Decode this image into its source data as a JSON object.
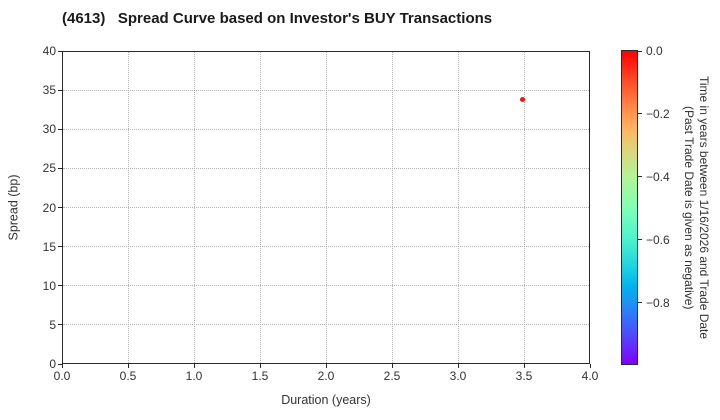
{
  "colors": {
    "background": "#ffffff",
    "frame": "#2a2a2a",
    "grid": "#b3b3b3",
    "text": "#333333",
    "title": "#1a1a1a",
    "point": "#f3170c"
  },
  "chart_data": {
    "type": "scatter",
    "title": "(4613)   Spread Curve based on Investor's BUY Transactions",
    "xlabel": "Duration (years)",
    "ylabel": "Spread (bp)",
    "xlim": [
      0.0,
      4.0
    ],
    "ylim": [
      0,
      40
    ],
    "xtick_values": [
      0,
      0.5,
      1,
      1.5,
      2,
      2.5,
      3,
      3.5,
      4
    ],
    "xtick_labels": [
      "0.0",
      "0.5",
      "1.0",
      "1.5",
      "2.0",
      "2.5",
      "3.0",
      "3.5",
      "4.0"
    ],
    "ytick_values": [
      0,
      5,
      10,
      15,
      20,
      25,
      30,
      35,
      40
    ],
    "ytick_labels": [
      "0",
      "5",
      "10",
      "15",
      "20",
      "25",
      "30",
      "35",
      "40"
    ],
    "grid": true,
    "legend": "none",
    "points": [
      {
        "x": 3.49,
        "y": 33.8,
        "time_value": 0.0,
        "color": "#f3170c"
      }
    ],
    "colorbar": {
      "label_line1": "Time in years between 1/16/2026 and Trade Date",
      "label_line2": "(Past Trade Date is given as negative)",
      "tick_values": [
        0.0,
        -0.2,
        -0.4,
        -0.6,
        -0.8
      ],
      "tick_labels": [
        "0.0",
        "−0.2",
        "−0.4",
        "−0.6",
        "−0.8"
      ],
      "range": [
        0.0,
        -1.0
      ],
      "colormap": "rainbow",
      "gradient_stops": [
        [
          0.0,
          "#ff0000"
        ],
        [
          0.1,
          "#ff4f28"
        ],
        [
          0.2,
          "#ff964f"
        ],
        [
          0.25,
          "#ffb462"
        ],
        [
          0.3,
          "#e6ce74"
        ],
        [
          0.4,
          "#b3f396"
        ],
        [
          0.5,
          "#80ffb4"
        ],
        [
          0.6,
          "#4df3ce"
        ],
        [
          0.7,
          "#1acee3"
        ],
        [
          0.75,
          "#00b4ec"
        ],
        [
          0.8,
          "#1a96f3"
        ],
        [
          0.9,
          "#4d4ffc"
        ],
        [
          1.0,
          "#8000ff"
        ]
      ]
    }
  }
}
